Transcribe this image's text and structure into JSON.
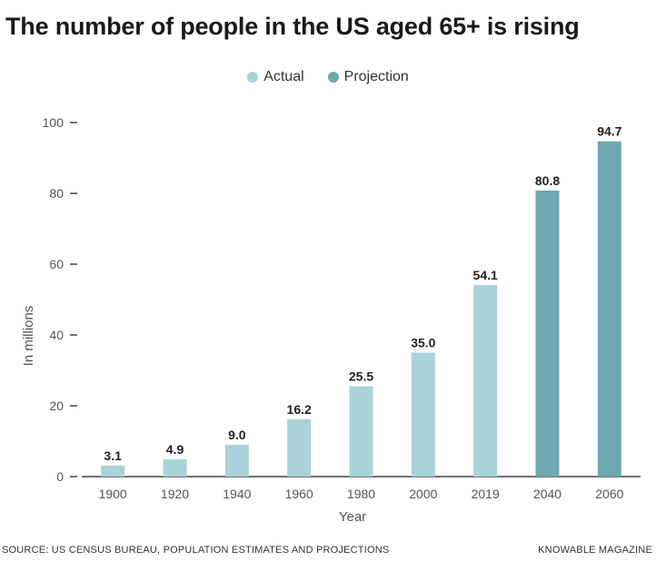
{
  "title": "The number of people in the US aged 65+ is rising",
  "legend": {
    "actual_label": "Actual",
    "projection_label": "Projection"
  },
  "colors": {
    "actual": "#a9d2d9",
    "projection": "#6ea8b1",
    "axis": "#444444"
  },
  "source": "SOURCE: US CENSUS BUREAU, POPULATION ESTIMATES AND PROJECTIONS",
  "publisher": "KNOWABLE MAGAZINE",
  "chart_data": {
    "type": "bar",
    "title": "The number of people in the US aged 65+ is rising",
    "xlabel": "Year",
    "ylabel": "In millions",
    "ylim": [
      0,
      100
    ],
    "yticks": [
      0,
      20,
      40,
      60,
      80,
      100
    ],
    "categories": [
      "1900",
      "1920",
      "1940",
      "1960",
      "1980",
      "2000",
      "2019",
      "2040",
      "2060"
    ],
    "values": [
      3.1,
      4.9,
      9.0,
      16.2,
      25.5,
      35.0,
      54.1,
      80.8,
      94.7
    ],
    "value_labels": [
      "3.1",
      "4.9",
      "9.0",
      "16.2",
      "25.5",
      "35.0",
      "54.1",
      "80.8",
      "94.7"
    ],
    "series_type": [
      "actual",
      "actual",
      "actual",
      "actual",
      "actual",
      "actual",
      "actual",
      "projection",
      "projection"
    ],
    "legend_position": "top-center",
    "grid": false
  }
}
